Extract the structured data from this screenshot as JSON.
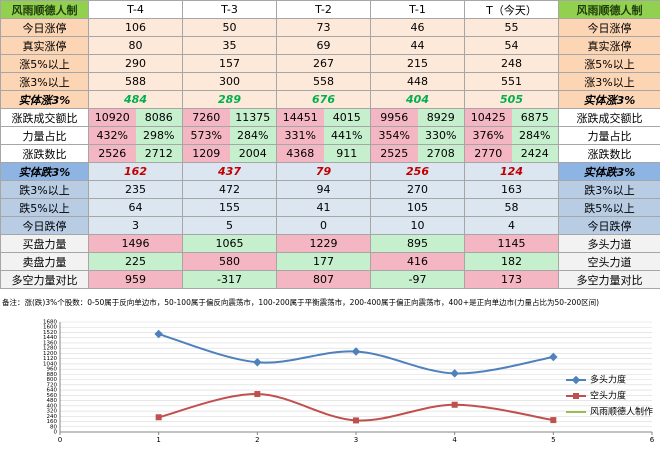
{
  "table": {
    "header": [
      "风雨顺德人制",
      "T-4",
      "T-3",
      "T-2",
      "T-1",
      "T（今天）",
      "风雨顺德人制"
    ],
    "rows": [
      {
        "label": "今日涨停",
        "values": [
          106,
          50,
          73,
          46,
          55
        ],
        "right_label": "今日涨停"
      },
      {
        "label": "真实涨停",
        "values": [
          80,
          35,
          69,
          44,
          54
        ],
        "right_label": "真实涨停"
      },
      {
        "label": "涨5%以上",
        "values": [
          290,
          157,
          267,
          215,
          248
        ],
        "right_label": "涨5%以上"
      },
      {
        "label": "涨3%以上",
        "values": [
          588,
          300,
          558,
          448,
          551
        ],
        "right_label": "涨3%以上"
      },
      {
        "label": "实体涨3%",
        "values": [
          484,
          289,
          676,
          404,
          505
        ],
        "right_label": "实体涨3%"
      },
      {
        "label": "涨跌成交额比",
        "values": [
          [
            10920,
            8086
          ],
          [
            7260,
            11375
          ],
          [
            14451,
            4015
          ],
          [
            9956,
            8929
          ],
          [
            10425,
            6875
          ]
        ],
        "right_label": "涨跌成交额比"
      },
      {
        "label": "力量占比",
        "values": [
          [
            "432%",
            "298%"
          ],
          [
            "573%",
            "284%"
          ],
          [
            "331%",
            "441%"
          ],
          [
            "354%",
            "330%"
          ],
          [
            "376%",
            "284%"
          ]
        ],
        "right_label": "力量占比"
      },
      {
        "label": "涨跌数比",
        "values": [
          [
            2526,
            2712
          ],
          [
            1209,
            2004
          ],
          [
            4368,
            911
          ],
          [
            2525,
            2708
          ],
          [
            2770,
            2424
          ]
        ],
        "right_label": "涨跌数比"
      },
      {
        "label": "实体跌3%",
        "values": [
          162,
          437,
          79,
          256,
          124
        ],
        "right_label": "实体跌3%"
      },
      {
        "label": "跌3%以上",
        "values": [
          235,
          472,
          94,
          270,
          163
        ],
        "right_label": "跌3%以上"
      },
      {
        "label": "跌5%以上",
        "values": [
          64,
          155,
          41,
          105,
          58
        ],
        "right_label": "跌5%以上"
      },
      {
        "label": "今日跌停",
        "values": [
          3,
          5,
          0,
          10,
          4
        ],
        "right_label": "今日跌停"
      },
      {
        "label": "买盘力量",
        "values": [
          1496,
          1065,
          1229,
          895,
          1145
        ],
        "right_label": "多头力道"
      },
      {
        "label": "卖盘力量",
        "values": [
          225,
          580,
          177,
          416,
          182
        ],
        "right_label": "空头力道"
      },
      {
        "label": "多空力量对比",
        "values": [
          959,
          -317,
          807,
          -97,
          173
        ],
        "right_label": "多空力量对比"
      }
    ],
    "note": "备注：涨(跌)3%个股数：0-50属于反向单边市，50-100属于偏反向震荡市，100-200属于平衡震荡市，200-400属于偏正向震荡市，400+是正向单边市(力量占比为50-200区间)"
  },
  "chart_data": {
    "type": "line",
    "x": [
      1,
      2,
      3,
      4,
      5
    ],
    "series": [
      {
        "name": "多头力度",
        "color": "#4f81bd",
        "values": [
          1496,
          1065,
          1229,
          895,
          1145
        ]
      },
      {
        "name": "空头力度",
        "color": "#c0504d",
        "values": [
          225,
          580,
          177,
          416,
          182
        ]
      },
      {
        "name": "风雨顺德人制作",
        "color": "#9bbb59",
        "values": [
          null,
          null,
          null,
          null,
          null
        ]
      }
    ],
    "xlim": [
      0,
      6
    ],
    "xticks": [
      0,
      1,
      2,
      3,
      4,
      5,
      6
    ],
    "ylim": [
      0,
      1680
    ],
    "yticks": [
      0,
      80,
      160,
      240,
      320,
      400,
      480,
      560,
      640,
      720,
      800,
      880,
      960,
      1040,
      1120,
      1200,
      1280,
      1360,
      1440,
      1520,
      1600,
      1680
    ],
    "grid": true,
    "legend": "right"
  }
}
